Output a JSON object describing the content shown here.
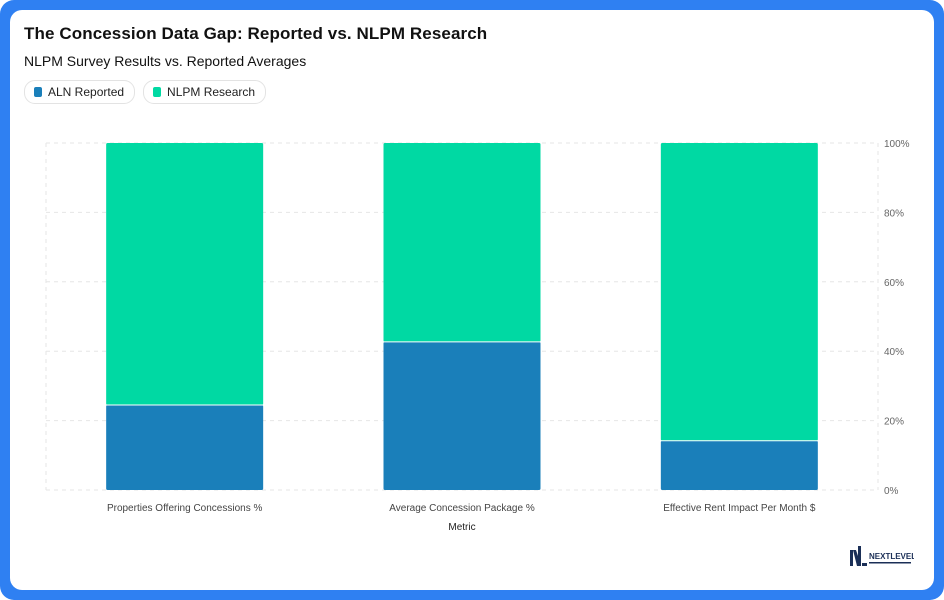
{
  "title": "The Concession Data Gap: Reported vs. NLPM Research",
  "subtitle": "NLPM Survey Results vs. Reported Averages",
  "logo": {
    "text": "NEXTLEVEL"
  },
  "colors": {
    "aln": "#1a7fba",
    "nlpm": "#00d9a3",
    "frame": "#2f80f2"
  },
  "chart_data": {
    "type": "bar",
    "stacked": true,
    "normalized": true,
    "categories": [
      "Properties Offering Concessions %",
      "Average Concession Package %",
      "Effective Rent Impact Per Month $"
    ],
    "series": [
      {
        "name": "ALN Reported",
        "values": [
          24.5,
          42.7,
          14.2
        ]
      },
      {
        "name": "NLPM Research",
        "values": [
          75.5,
          57.3,
          85.8
        ]
      }
    ],
    "xlabel": "Metric",
    "ylabel": "",
    "ylim": [
      0,
      100
    ],
    "yticks": [
      "0%",
      "20%",
      "40%",
      "60%",
      "80%",
      "100%"
    ],
    "y_axis_side": "right",
    "grid": true,
    "legend": "top-left"
  }
}
